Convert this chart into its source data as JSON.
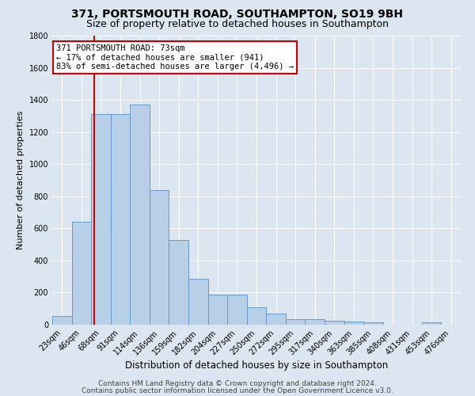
{
  "title1": "371, PORTSMOUTH ROAD, SOUTHAMPTON, SO19 9BH",
  "title2": "Size of property relative to detached houses in Southampton",
  "xlabel": "Distribution of detached houses by size in Southampton",
  "ylabel": "Number of detached properties",
  "background_color": "#dce6f0",
  "bar_color": "#b8cfe8",
  "bar_edge_color": "#6699cc",
  "grid_color": "#ffffff",
  "categories": [
    "23sqm",
    "46sqm",
    "68sqm",
    "91sqm",
    "114sqm",
    "136sqm",
    "159sqm",
    "182sqm",
    "204sqm",
    "227sqm",
    "250sqm",
    "272sqm",
    "295sqm",
    "317sqm",
    "340sqm",
    "363sqm",
    "385sqm",
    "408sqm",
    "431sqm",
    "453sqm",
    "476sqm"
  ],
  "bin_edges": [
    0,
    1,
    2,
    3,
    4,
    5,
    6,
    7,
    8,
    9,
    10,
    11,
    12,
    13,
    14,
    15,
    16,
    17,
    18,
    19,
    20
  ],
  "values": [
    55,
    640,
    1310,
    1310,
    1370,
    840,
    530,
    285,
    185,
    185,
    110,
    70,
    35,
    35,
    25,
    20,
    15,
    0,
    0,
    15,
    0
  ],
  "ylim": [
    0,
    1800
  ],
  "yticks": [
    0,
    200,
    400,
    600,
    800,
    1000,
    1200,
    1400,
    1600,
    1800
  ],
  "property_line_x": 2.17,
  "property_line_color": "#cc0000",
  "annotation_text": "371 PORTSMOUTH ROAD: 73sqm\n← 17% of detached houses are smaller (941)\n83% of semi-detached houses are larger (4,496) →",
  "annotation_box_color": "#ffffff",
  "annotation_box_edge_color": "#cc0000",
  "footnote1": "Contains HM Land Registry data © Crown copyright and database right 2024.",
  "footnote2": "Contains public sector information licensed under the Open Government Licence v3.0.",
  "title1_fontsize": 10,
  "title2_fontsize": 9,
  "xlabel_fontsize": 8.5,
  "ylabel_fontsize": 8,
  "tick_fontsize": 7,
  "annotation_fontsize": 7.5,
  "footnote_fontsize": 6.5
}
